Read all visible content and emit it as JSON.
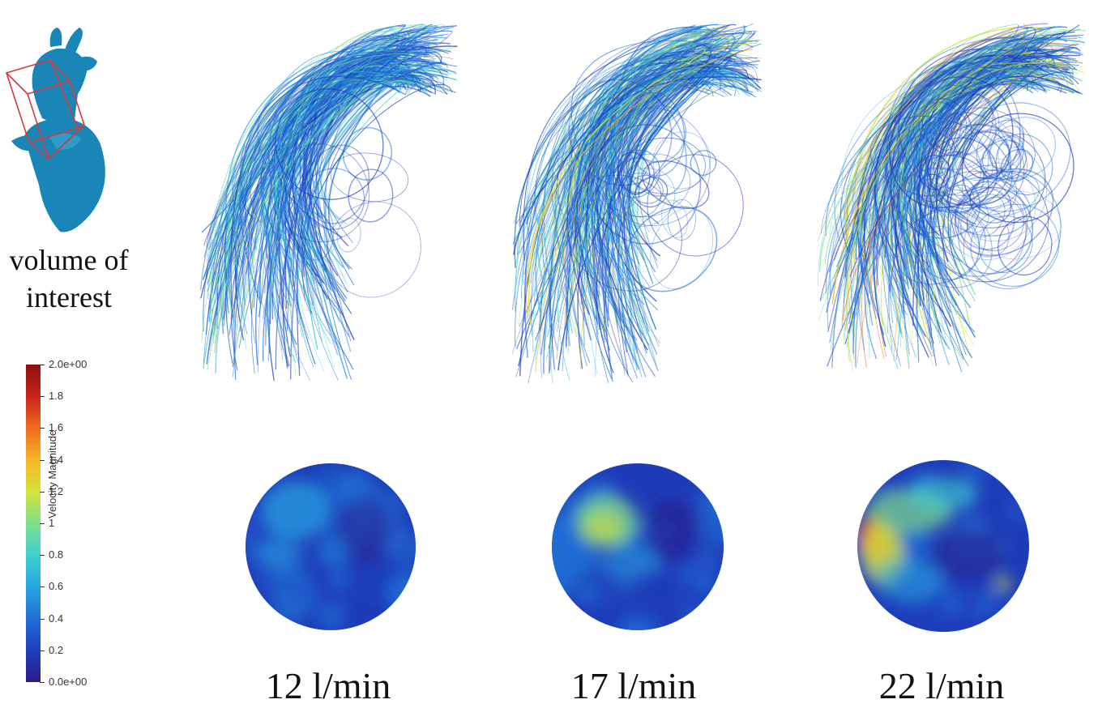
{
  "volume_label": [
    "volume of",
    "interest"
  ],
  "colorbar": {
    "title": "Velocity Magnitude",
    "min": 0,
    "max": 2,
    "ticks": [
      "0.0e+00",
      "0.2",
      "0.4",
      "0.6",
      "0.8",
      "1",
      "1.2",
      "1.4",
      "1.6",
      "1.8",
      "2.0e+00"
    ],
    "colors": [
      "#2a1a8a",
      "#1d3fbf",
      "#1f6fd6",
      "#27a6e0",
      "#3fd0cf",
      "#7ee08a",
      "#d4e23a",
      "#f7b62a",
      "#f06b1c",
      "#c9241a",
      "#8a1010"
    ]
  },
  "panels": [
    {
      "flow_label": "12 l/min"
    },
    {
      "flow_label": "17 l/min"
    },
    {
      "flow_label": "22 l/min"
    }
  ]
}
